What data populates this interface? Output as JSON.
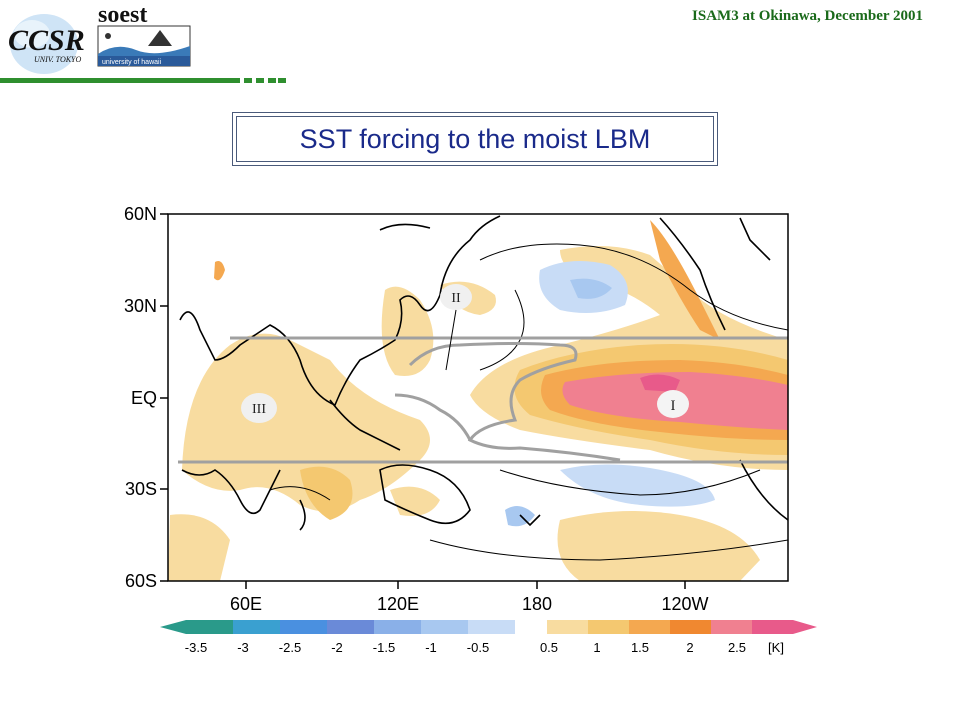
{
  "header": {
    "title": "ISAM3 at Okinawa, December 2001",
    "logo_ccsr_main": "CCSR",
    "logo_ccsr_sub": "UNIV. TOKYO",
    "logo_soest_main": "soest",
    "logo_soest_sub": "university of hawaii"
  },
  "slide": {
    "title": "SST forcing to the moist LBM"
  },
  "map": {
    "lat_labels": [
      "60N",
      "30N",
      "EQ",
      "30S",
      "60S"
    ],
    "lon_labels": [
      "60E",
      "120E",
      "180",
      "120W"
    ],
    "region_labels": [
      "I",
      "II",
      "III"
    ],
    "colorbar": {
      "negative_labels": [
        "-3.5",
        "-3",
        "-2.5",
        "-2",
        "-1.5",
        "-1",
        "-0.5"
      ],
      "positive_labels": [
        "0.5",
        "1",
        "1.5",
        "2",
        "2.5"
      ],
      "unit": "[K]",
      "negative_colors": [
        "#2a9a8a",
        "#3aa0d0",
        "#4a90e0",
        "#6a8ad8",
        "#8ab0e8",
        "#a8c8f0",
        "#c8dcf6"
      ],
      "positive_colors": [
        "#f8dca0",
        "#f4c870",
        "#f4a850",
        "#f08830",
        "#f08090",
        "#e85a8a"
      ]
    }
  }
}
